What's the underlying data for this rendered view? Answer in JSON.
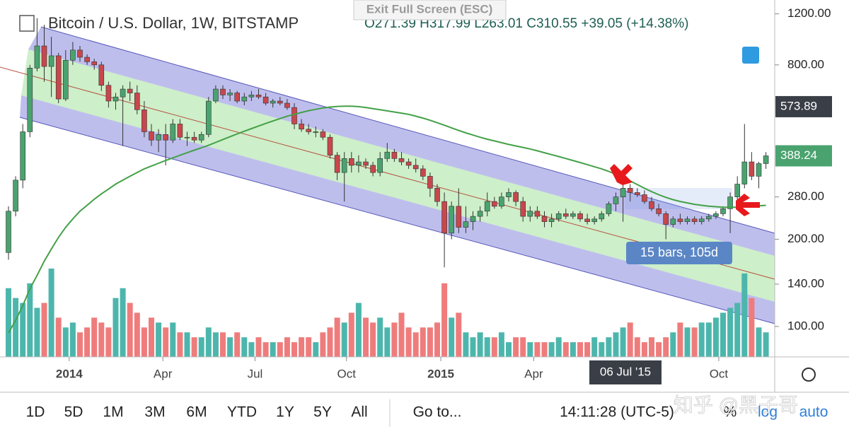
{
  "exit_fullscreen": "Exit Full Screen (ESC)",
  "chart_data": {
    "type": "candlestick",
    "title": "Bitcoin / U.S. Dollar, 1W, BITSTAMP",
    "ohlc_legend": "O271.39 H317.99 L263.01 C310.55 +39.05 (+14.38%)",
    "log_scale": true,
    "up_color": "#4aa36f",
    "down_color": "#c8474c",
    "volume_up_color": "#4db6ac",
    "volume_down_color": "#ef7c7c",
    "ma_color": "#43a047",
    "ylim": [
      78.5,
      1340
    ],
    "yticks": [
      {
        "value": 100,
        "label": "100.00"
      },
      {
        "value": 140,
        "label": "140.00"
      },
      {
        "value": 200,
        "label": "200.00"
      },
      {
        "value": 280,
        "label": "280.00"
      },
      {
        "value": 800,
        "label": "800.00"
      },
      {
        "value": 1200,
        "label": "1200.00"
      }
    ],
    "xticks": [
      {
        "value": 8.5,
        "label": "2014"
      },
      {
        "value": 21.6,
        "label": "Apr"
      },
      {
        "value": 34.5,
        "label": "Jul"
      },
      {
        "value": 47.3,
        "label": "Oct"
      },
      {
        "value": 60.5,
        "label": "2015"
      },
      {
        "value": 73.5,
        "label": "Apr"
      },
      {
        "value": 99.4,
        "label": "Oct"
      }
    ],
    "crosshair": {
      "price": 573.89,
      "date": "06 Jul '15"
    },
    "annotation": "15 bars, 105d",
    "candles": [
      [
        180,
        260,
        170,
        250
      ],
      [
        250,
        330,
        240,
        320
      ],
      [
        320,
        500,
        300,
        470
      ],
      [
        470,
        800,
        450,
        780
      ],
      [
        780,
        1160,
        760,
        930
      ],
      [
        930,
        1100,
        700,
        790
      ],
      [
        790,
        1000,
        620,
        860
      ],
      [
        860,
        880,
        590,
        610
      ],
      [
        610,
        900,
        600,
        830
      ],
      [
        830,
        960,
        800,
        900
      ],
      [
        900,
        930,
        820,
        850
      ],
      [
        850,
        870,
        800,
        820
      ],
      [
        820,
        840,
        770,
        800
      ],
      [
        800,
        820,
        650,
        680
      ],
      [
        680,
        700,
        570,
        600
      ],
      [
        600,
        640,
        560,
        620
      ],
      [
        620,
        680,
        420,
        660
      ],
      [
        660,
        700,
        600,
        640
      ],
      [
        640,
        680,
        540,
        560
      ],
      [
        560,
        600,
        450,
        470
      ],
      [
        470,
        500,
        420,
        440
      ],
      [
        440,
        480,
        400,
        460
      ],
      [
        460,
        500,
        360,
        440
      ],
      [
        440,
        520,
        430,
        500
      ],
      [
        500,
        520,
        440,
        450
      ],
      [
        450,
        470,
        420,
        450
      ],
      [
        450,
        470,
        430,
        440
      ],
      [
        440,
        470,
        430,
        460
      ],
      [
        460,
        620,
        450,
        600
      ],
      [
        600,
        680,
        590,
        660
      ],
      [
        660,
        680,
        610,
        630
      ],
      [
        630,
        660,
        600,
        640
      ],
      [
        640,
        650,
        590,
        600
      ],
      [
        600,
        640,
        580,
        620
      ],
      [
        620,
        650,
        600,
        630
      ],
      [
        630,
        660,
        610,
        620
      ],
      [
        620,
        640,
        580,
        590
      ],
      [
        590,
        610,
        570,
        600
      ],
      [
        600,
        620,
        580,
        590
      ],
      [
        590,
        610,
        560,
        570
      ],
      [
        570,
        590,
        480,
        500
      ],
      [
        500,
        520,
        470,
        480
      ],
      [
        480,
        500,
        460,
        470
      ],
      [
        470,
        490,
        450,
        470
      ],
      [
        470,
        480,
        440,
        450
      ],
      [
        450,
        460,
        380,
        390
      ],
      [
        390,
        400,
        320,
        340
      ],
      [
        340,
        400,
        270,
        380
      ],
      [
        380,
        400,
        340,
        360
      ],
      [
        360,
        390,
        340,
        370
      ],
      [
        370,
        380,
        350,
        360
      ],
      [
        360,
        370,
        330,
        340
      ],
      [
        340,
        400,
        330,
        380
      ],
      [
        380,
        430,
        370,
        400
      ],
      [
        400,
        410,
        370,
        380
      ],
      [
        380,
        400,
        360,
        370
      ],
      [
        370,
        380,
        350,
        360
      ],
      [
        360,
        380,
        340,
        350
      ],
      [
        350,
        360,
        320,
        330
      ],
      [
        330,
        340,
        280,
        300
      ],
      [
        300,
        310,
        260,
        270
      ],
      [
        270,
        290,
        160,
        210
      ],
      [
        210,
        270,
        200,
        260
      ],
      [
        260,
        300,
        210,
        220
      ],
      [
        220,
        260,
        210,
        230
      ],
      [
        230,
        250,
        215,
        240
      ],
      [
        240,
        260,
        230,
        250
      ],
      [
        250,
        290,
        240,
        270
      ],
      [
        270,
        280,
        255,
        260
      ],
      [
        260,
        290,
        255,
        280
      ],
      [
        280,
        300,
        270,
        290
      ],
      [
        290,
        295,
        260,
        270
      ],
      [
        270,
        280,
        230,
        240
      ],
      [
        240,
        260,
        230,
        250
      ],
      [
        250,
        260,
        235,
        240
      ],
      [
        240,
        250,
        220,
        230
      ],
      [
        230,
        245,
        220,
        235
      ],
      [
        235,
        250,
        230,
        245
      ],
      [
        245,
        255,
        235,
        240
      ],
      [
        240,
        250,
        235,
        245
      ],
      [
        245,
        250,
        230,
        235
      ],
      [
        235,
        245,
        225,
        230
      ],
      [
        230,
        240,
        225,
        235
      ],
      [
        235,
        250,
        230,
        245
      ],
      [
        245,
        270,
        240,
        265
      ],
      [
        265,
        290,
        250,
        280
      ],
      [
        280,
        320,
        230,
        300
      ],
      [
        300,
        310,
        270,
        290
      ],
      [
        290,
        300,
        280,
        285
      ],
      [
        285,
        295,
        265,
        270
      ],
      [
        270,
        280,
        250,
        255
      ],
      [
        255,
        265,
        240,
        245
      ],
      [
        245,
        250,
        200,
        225
      ],
      [
        225,
        240,
        220,
        235
      ],
      [
        235,
        245,
        225,
        230
      ],
      [
        230,
        240,
        225,
        235
      ],
      [
        235,
        240,
        225,
        230
      ],
      [
        230,
        240,
        225,
        235
      ],
      [
        235,
        245,
        230,
        240
      ],
      [
        240,
        250,
        235,
        245
      ],
      [
        245,
        260,
        240,
        255
      ],
      [
        255,
        290,
        210,
        280
      ],
      [
        280,
        330,
        270,
        310
      ],
      [
        310,
        500,
        300,
        370
      ],
      [
        370,
        400,
        320,
        330
      ],
      [
        330,
        370,
        300,
        365
      ],
      [
        365,
        400,
        350,
        388.24
      ]
    ],
    "volume": [
      70,
      60,
      55,
      75,
      50,
      55,
      90,
      40,
      30,
      35,
      25,
      30,
      40,
      35,
      30,
      60,
      70,
      55,
      45,
      30,
      40,
      35,
      30,
      35,
      25,
      25,
      20,
      20,
      30,
      25,
      25,
      20,
      25,
      20,
      15,
      20,
      15,
      15,
      15,
      20,
      15,
      20,
      20,
      15,
      25,
      30,
      40,
      35,
      45,
      55,
      40,
      35,
      40,
      30,
      35,
      45,
      30,
      25,
      30,
      30,
      35,
      75,
      40,
      45,
      25,
      20,
      25,
      20,
      20,
      25,
      15,
      20,
      20,
      15,
      15,
      15,
      15,
      20,
      15,
      15,
      15,
      15,
      20,
      15,
      20,
      25,
      30,
      35,
      20,
      15,
      20,
      15,
      20,
      25,
      35,
      30,
      30,
      35,
      35,
      40,
      45,
      50,
      55,
      85,
      60,
      30,
      25
    ],
    "ma": [
      95,
      105,
      118,
      135,
      150,
      168,
      185,
      203,
      220,
      235,
      250,
      262,
      275,
      287,
      298,
      310,
      320,
      330,
      340,
      350,
      358,
      366,
      374,
      382,
      390,
      398,
      406,
      414,
      422,
      432,
      442,
      452,
      462,
      472,
      482,
      492,
      502,
      512,
      522,
      532,
      540,
      548,
      556,
      562,
      568,
      572,
      575,
      576,
      576,
      574,
      570,
      565,
      560,
      555,
      550,
      545,
      540,
      532,
      524,
      515,
      505,
      495,
      485,
      475,
      466,
      458,
      450,
      443,
      437,
      431,
      425,
      420,
      415,
      410,
      404,
      398,
      392,
      386,
      380,
      374,
      368,
      362,
      356,
      350,
      343,
      335,
      327,
      318,
      309,
      300,
      292,
      285,
      279,
      274,
      270,
      267,
      264,
      262,
      260,
      259,
      258,
      258,
      258,
      259,
      260,
      261,
      262
    ]
  },
  "toolbar": {
    "ranges": [
      "1D",
      "5D",
      "1M",
      "3M",
      "6M",
      "YTD",
      "1Y",
      "5Y",
      "All"
    ],
    "goto": "Go to...",
    "time": "14:11:28 (UTC-5)",
    "percent": "%",
    "log": "log",
    "auto": "auto"
  },
  "watermark": "知乎 @黑子哥"
}
